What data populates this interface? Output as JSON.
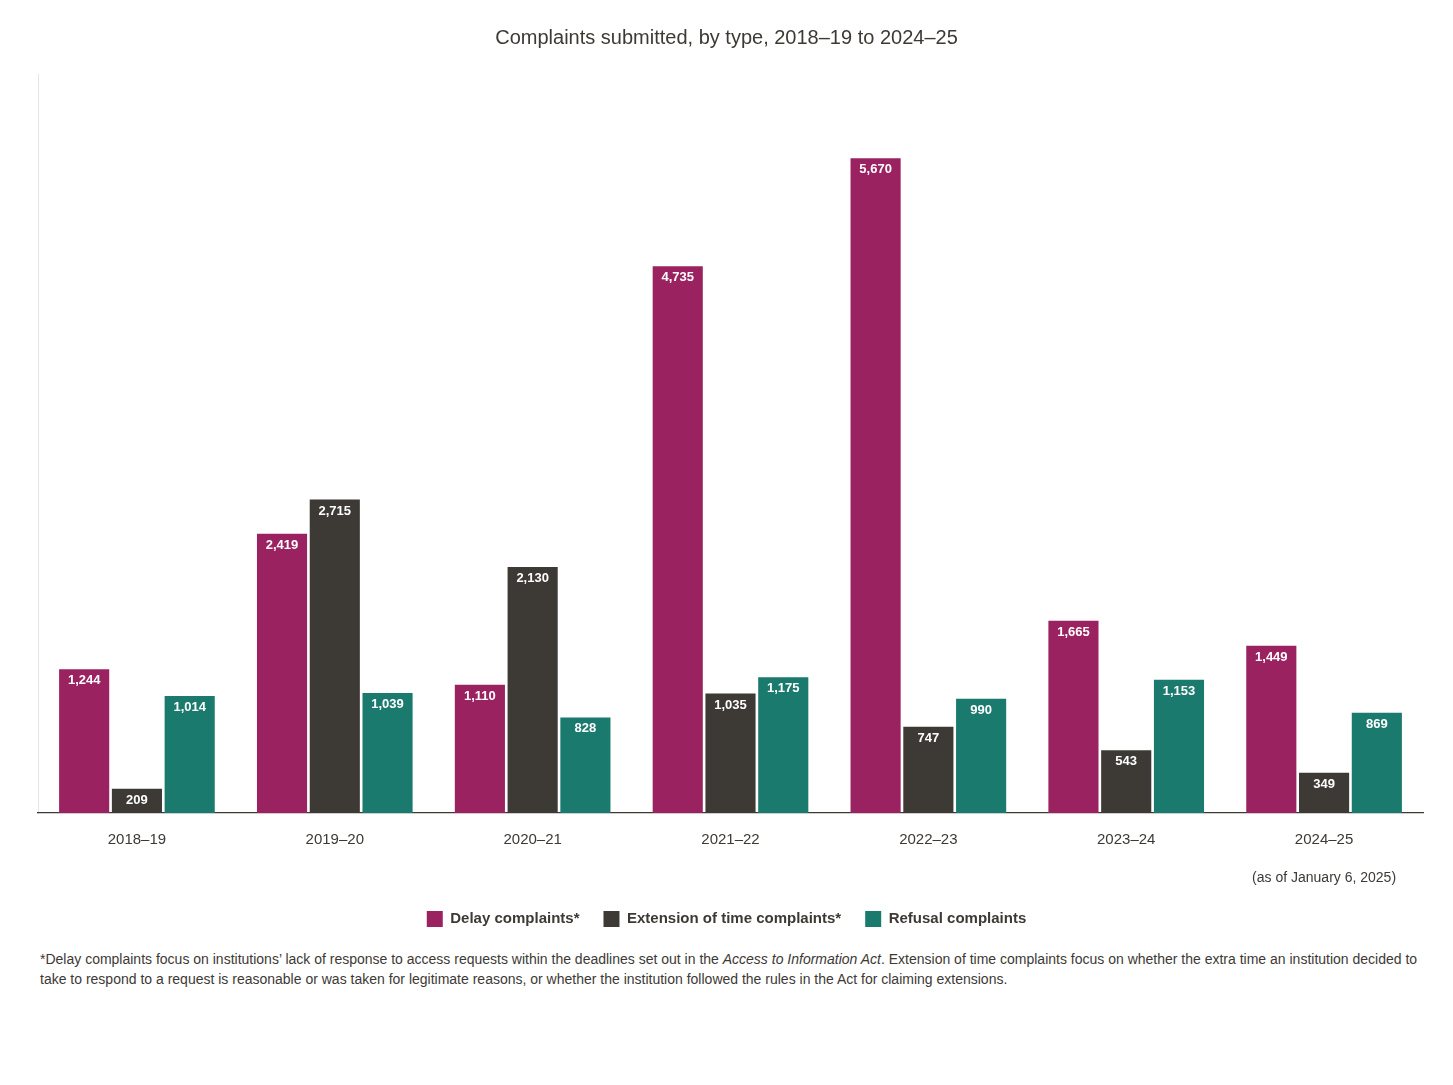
{
  "chart_data": {
    "type": "bar",
    "title": "Complaints submitted, by type, 2018–19 to 2024–25",
    "categories": [
      "2018–19",
      "2019–20",
      "2020–21",
      "2021–22",
      "2022–23",
      "2023–24",
      "2024–25"
    ],
    "series": [
      {
        "name": "Delay complaints*",
        "color": "#9B2260",
        "values": [
          1244,
          2419,
          1110,
          4735,
          5670,
          1665,
          1449
        ],
        "value_labels": [
          "1,244",
          "2,419",
          "1,110",
          "4,735",
          "5,670",
          "1,665",
          "1,449"
        ]
      },
      {
        "name": "Extension of time complaints*",
        "color": "#3D3935",
        "values": [
          209,
          2715,
          2130,
          1035,
          747,
          543,
          349
        ],
        "value_labels": [
          "209",
          "2,715",
          "2,130",
          "1,035",
          "747",
          "543",
          "349"
        ]
      },
      {
        "name": "Refusal complaints",
        "color": "#1B7A6E",
        "values": [
          1014,
          1039,
          828,
          1175,
          990,
          1153,
          869
        ],
        "value_labels": [
          "1,014",
          "1,039",
          "828",
          "1,175",
          "990",
          "1,153",
          "869"
        ]
      }
    ],
    "ylim": [
      0,
      6400
    ],
    "grid": false,
    "legend": "bottom",
    "data_labels": true,
    "tick_labels": "x",
    "annotations": [
      "(as of January 6, 2025)"
    ],
    "footnote": [
      "*Delay complaints focus on institutions’ lack of response to access requests within the deadlines set out in the ",
      "Access to Information Act",
      ". Extension of time complaints focus on whether the extra time an institution decided to take to respond to a request is reasonable or was taken for legitimate reasons, or whether the institution followed the rules in the Act for claiming extensions."
    ]
  }
}
